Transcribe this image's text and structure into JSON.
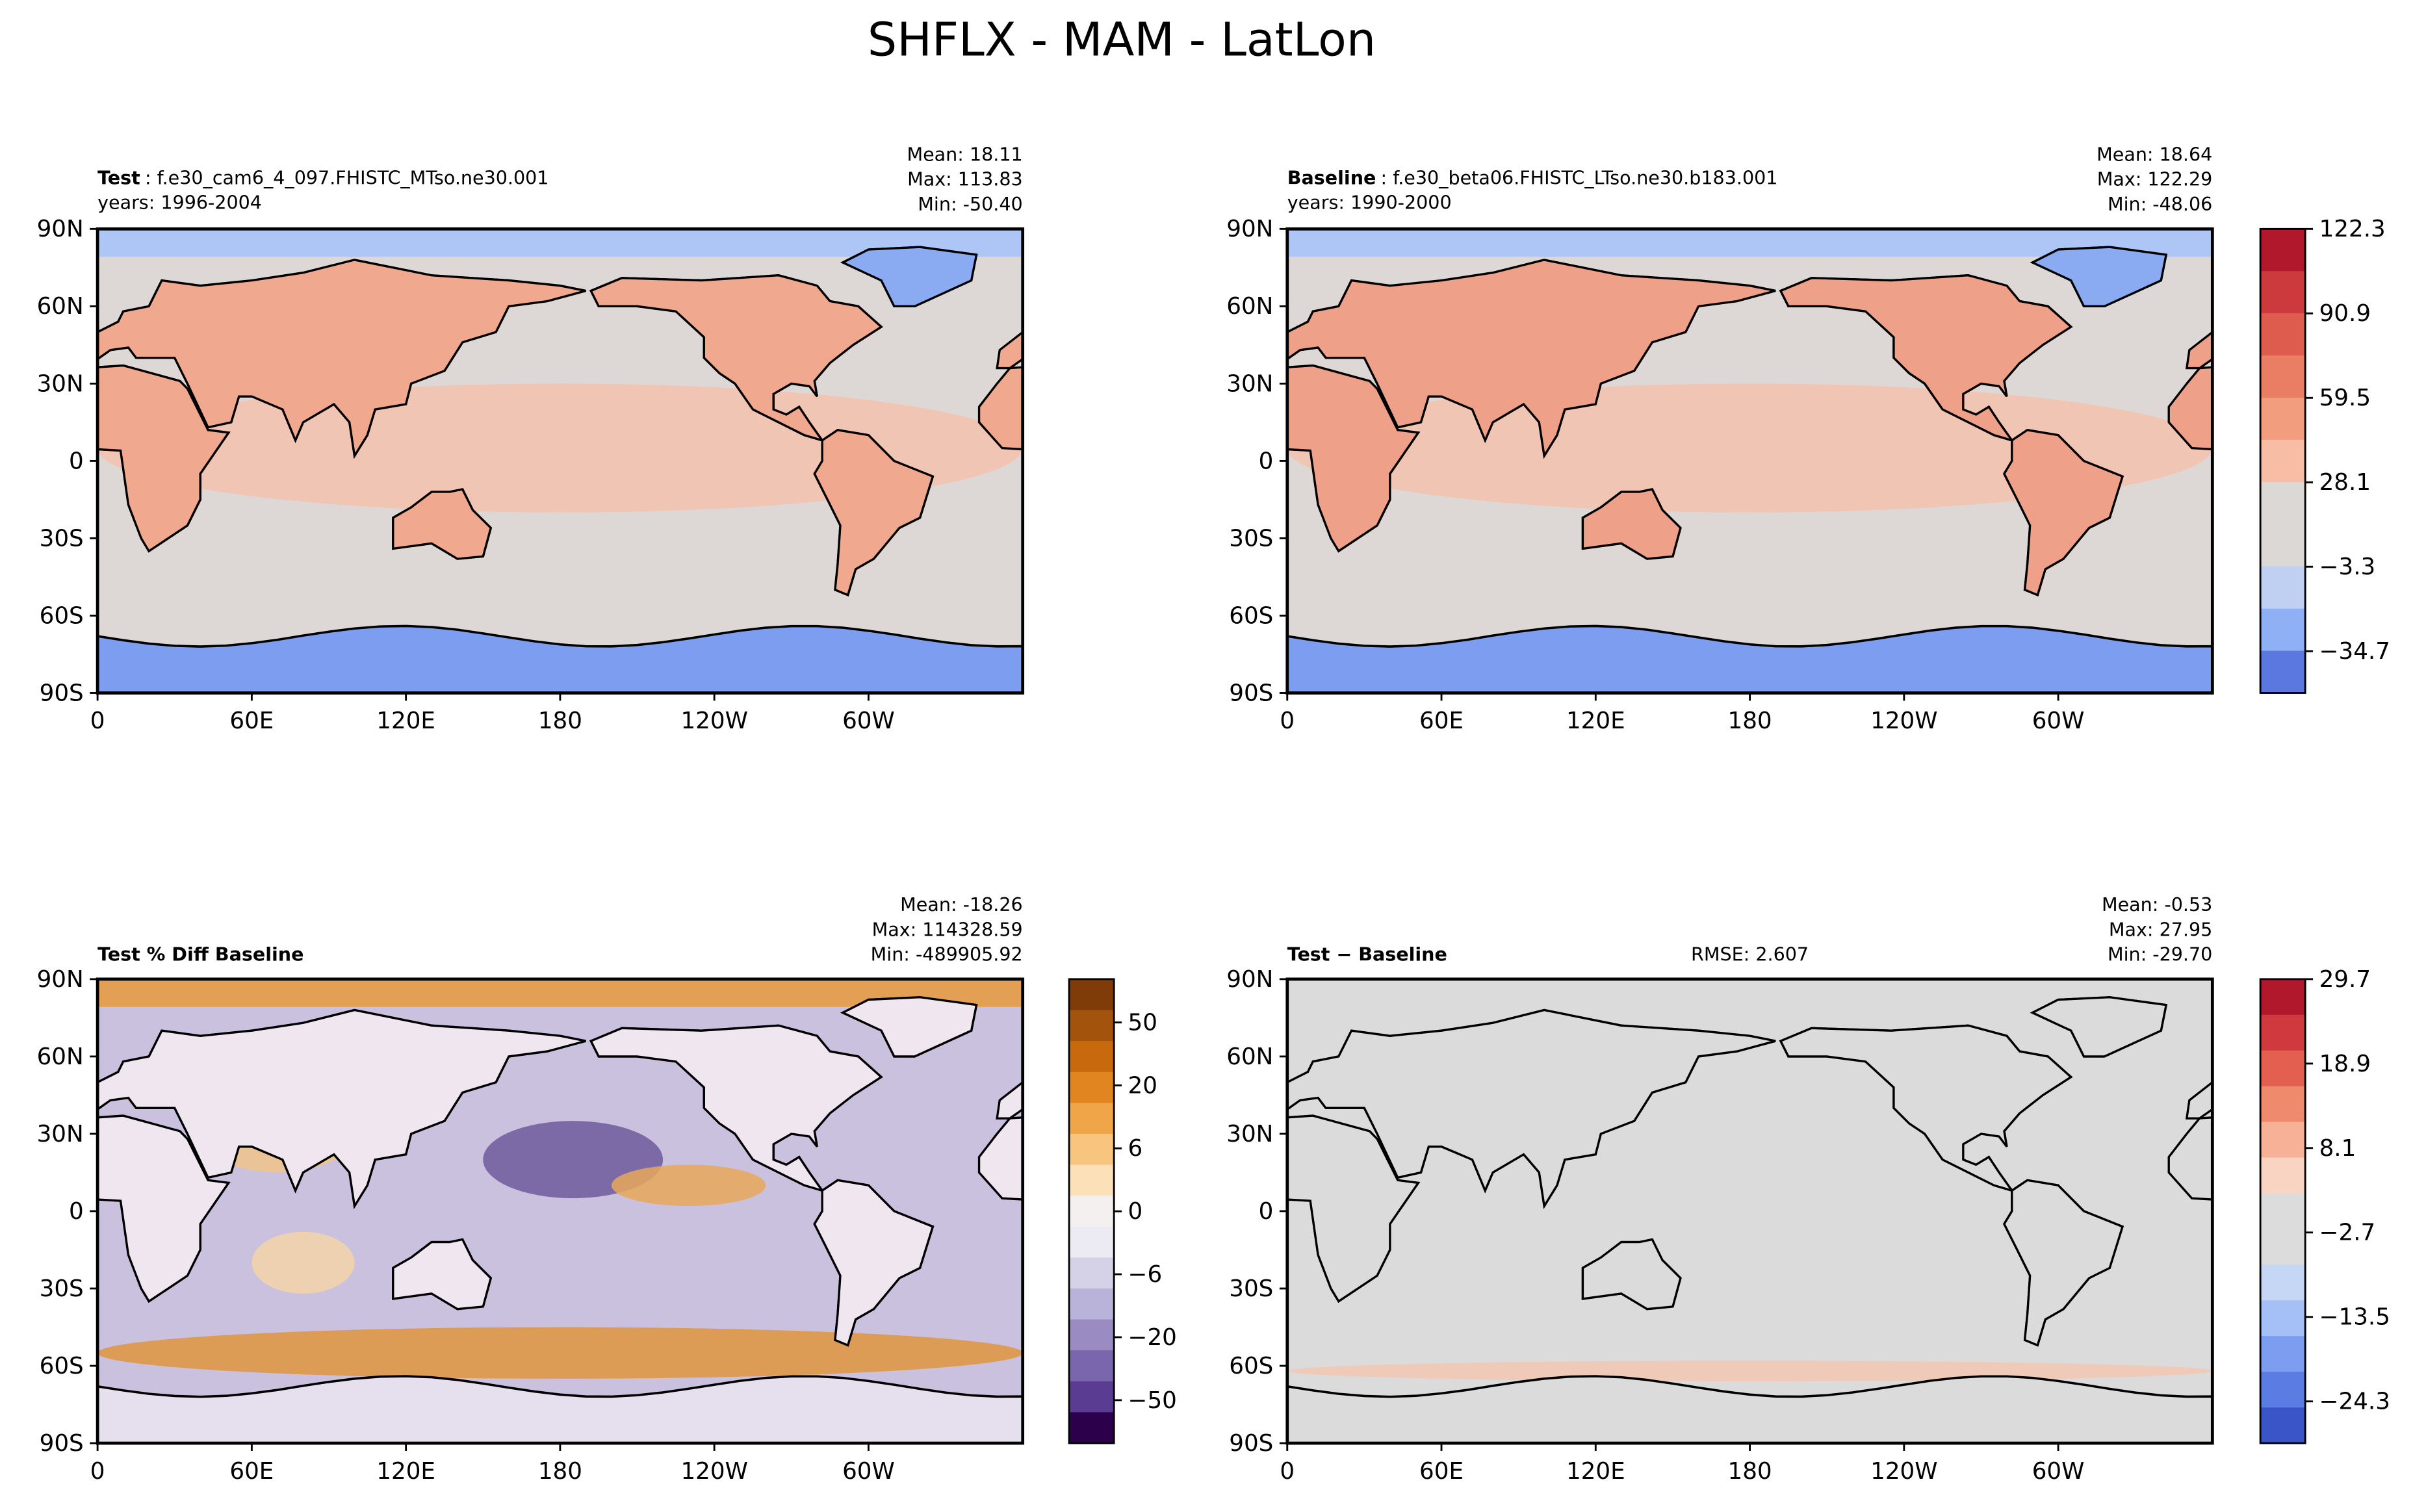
{
  "title": "SHFLX - MAM - LatLon",
  "panels": [
    {
      "label": "Test",
      "case": ": f.e30_cam6_4_097.FHISTC_MTso.ne30.001",
      "years": "years: 1996-2004",
      "stats": [
        "Mean: 18.11",
        "Max: 113.83",
        "Min: -50.40"
      ]
    },
    {
      "label": "Baseline",
      "case": ": f.e30_beta06.FHISTC_LTso.ne30.b183.001",
      "years": "years: 1990-2000",
      "stats": [
        "Mean: 18.64",
        "Max: 122.29",
        "Min: -48.06"
      ]
    },
    {
      "label": "Test % Diff Baseline",
      "stats": [
        "Mean: -18.26",
        "Max: 114328.59",
        "Min: -489905.92"
      ]
    },
    {
      "label": "Test − Baseline",
      "rmse": "RMSE: 2.607",
      "stats": [
        "Mean: -0.53",
        "Max: 27.95",
        "Min: -29.70"
      ]
    }
  ],
  "lat_ticks": [
    "90N",
    "60N",
    "30N",
    "0",
    "30S",
    "60S",
    "90S"
  ],
  "lon_ticks": [
    "0",
    "60E",
    "120E",
    "180",
    "120W",
    "60W"
  ],
  "colorbars": [
    {
      "ticks": [
        "122.3",
        "90.9",
        "59.5",
        "28.1",
        "−3.3",
        "−34.7"
      ]
    },
    {
      "ticks": [
        "50",
        "20",
        "6",
        "0",
        "−6",
        "−20",
        "−50"
      ]
    },
    {
      "ticks": [
        "29.7",
        "18.9",
        "8.1",
        "−2.7",
        "−13.5",
        "−24.3"
      ]
    }
  ]
}
